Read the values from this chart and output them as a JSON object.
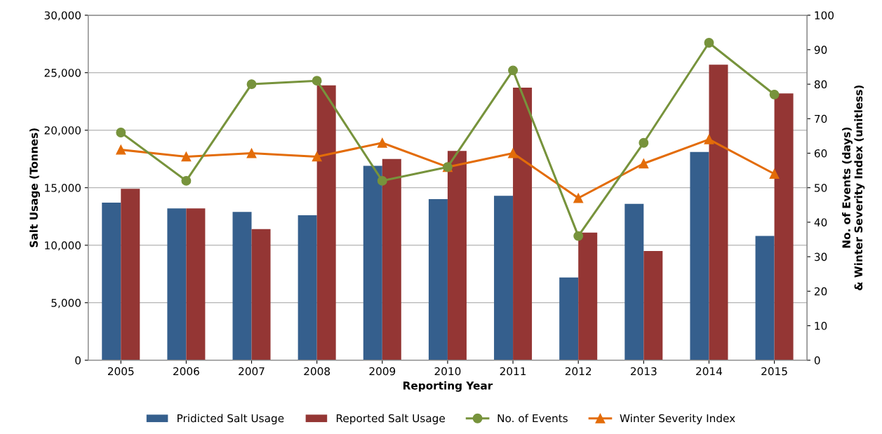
{
  "chart_data": {
    "type": "bar",
    "xlabel": "Reporting Year",
    "ylabel": "Salt Usage (Tonnes)",
    "y2label": "No. of Events (days)\n& Winter Severity Index (unitless)",
    "categories": [
      "2005",
      "2006",
      "2007",
      "2008",
      "2009",
      "2010",
      "2011",
      "2012",
      "2013",
      "2014",
      "2015"
    ],
    "series": [
      {
        "name": "Pridicted Salt Usage",
        "color": "#355f8d",
        "values": [
          13700,
          13200,
          12900,
          12600,
          16900,
          14000,
          14300,
          7200,
          13600,
          18100,
          10800
        ]
      },
      {
        "name": "Reported Salt Usage",
        "color": "#943634",
        "values": [
          14900,
          13200,
          11400,
          23900,
          17500,
          18200,
          23700,
          11100,
          9500,
          25700,
          23200
        ]
      },
      {
        "name": "No. of Events",
        "type": "line",
        "axis": "y2",
        "marker": "circle",
        "color": "#77933c",
        "values": [
          66,
          52,
          80,
          81,
          52,
          56,
          84,
          36,
          63,
          92,
          77
        ]
      },
      {
        "name": "Winter Severity Index",
        "type": "line",
        "axis": "y2",
        "marker": "triangle",
        "color": "#e36c09",
        "values": [
          61,
          59,
          60,
          59,
          63,
          56,
          60,
          47,
          57,
          64,
          54
        ]
      }
    ],
    "ylim": [
      0,
      30000
    ],
    "yticks": [
      {
        "value": 0,
        "label": "0"
      },
      {
        "value": 5000,
        "label": "5,000"
      },
      {
        "value": 10000,
        "label": "10,000"
      },
      {
        "value": 15000,
        "label": "15,000"
      },
      {
        "value": 20000,
        "label": "20,000"
      },
      {
        "value": 25000,
        "label": "25,000"
      },
      {
        "value": 30000,
        "label": "30,000"
      }
    ],
    "y2lim": [
      0,
      100
    ],
    "y2ticks": [
      0,
      10,
      20,
      30,
      40,
      50,
      60,
      70,
      80,
      90,
      100
    ],
    "grid": "y",
    "legend": "bottom"
  }
}
